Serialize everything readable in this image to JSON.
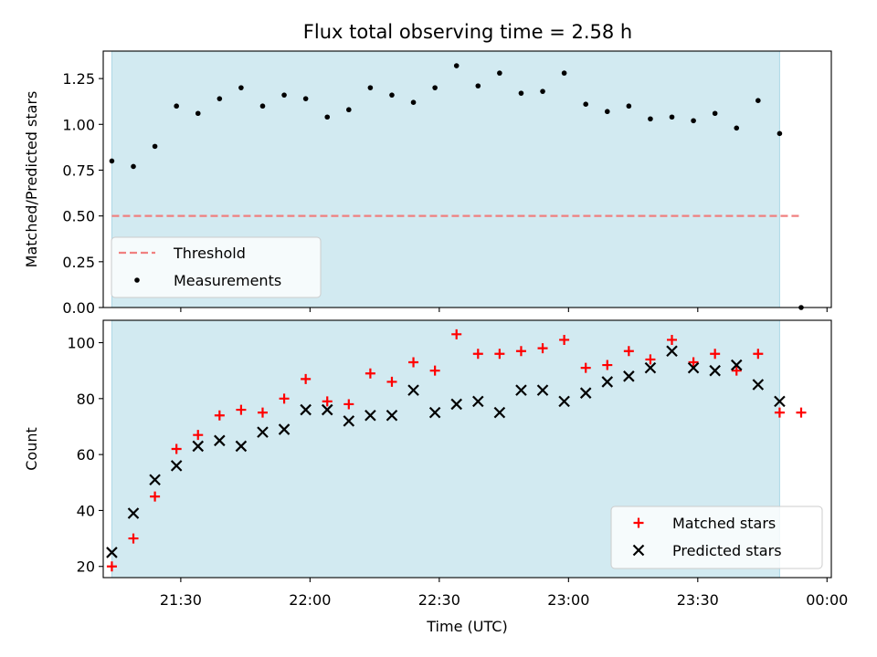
{
  "title": "Flux total observing time = 2.58 h",
  "colors": {
    "shade": "#add8e6",
    "threshold": "#f08080",
    "measurement": "#000000",
    "matched": "#ff0000",
    "predicted": "#000000"
  },
  "chart_data": [
    {
      "type": "scatter",
      "ylabel": "Matched/Predicted stars",
      "ylim": [
        0,
        1.4
      ],
      "yticks": [
        0.0,
        0.25,
        0.5,
        0.75,
        1.0,
        1.25
      ],
      "ytick_labels": [
        "0.00",
        "0.25",
        "0.50",
        "0.75",
        "1.00",
        "1.25"
      ],
      "xlim": [
        "21:12",
        "00:01"
      ],
      "shaded_interval": [
        "21:14",
        "23:49"
      ],
      "grid": false,
      "legend_position": "lower-left",
      "threshold": {
        "name": "Threshold",
        "value": 0.5,
        "x_range": [
          "21:14",
          "23:54"
        ],
        "style": "dashed"
      },
      "series": [
        {
          "name": "Measurements",
          "marker": "dot",
          "points": [
            [
              "21:14",
              0.8
            ],
            [
              "21:19",
              0.77
            ],
            [
              "21:24",
              0.88
            ],
            [
              "21:29",
              1.1
            ],
            [
              "21:34",
              1.06
            ],
            [
              "21:39",
              1.14
            ],
            [
              "21:44",
              1.2
            ],
            [
              "21:49",
              1.1
            ],
            [
              "21:54",
              1.16
            ],
            [
              "21:59",
              1.14
            ],
            [
              "22:04",
              1.04
            ],
            [
              "22:09",
              1.08
            ],
            [
              "22:14",
              1.2
            ],
            [
              "22:19",
              1.16
            ],
            [
              "22:24",
              1.12
            ],
            [
              "22:29",
              1.2
            ],
            [
              "22:34",
              1.32
            ],
            [
              "22:39",
              1.21
            ],
            [
              "22:44",
              1.28
            ],
            [
              "22:49",
              1.17
            ],
            [
              "22:54",
              1.18
            ],
            [
              "22:59",
              1.28
            ],
            [
              "23:04",
              1.11
            ],
            [
              "23:09",
              1.07
            ],
            [
              "23:14",
              1.1
            ],
            [
              "23:19",
              1.03
            ],
            [
              "23:24",
              1.04
            ],
            [
              "23:29",
              1.02
            ],
            [
              "23:34",
              1.06
            ],
            [
              "23:39",
              0.98
            ],
            [
              "23:44",
              1.13
            ],
            [
              "23:49",
              0.95
            ],
            [
              "23:54",
              0.0
            ]
          ]
        }
      ]
    },
    {
      "type": "scatter",
      "ylabel": "Count",
      "xlabel": "Time (UTC)",
      "ylim": [
        16,
        108
      ],
      "yticks": [
        20,
        40,
        60,
        80,
        100
      ],
      "ytick_labels": [
        "20",
        "40",
        "60",
        "80",
        "100"
      ],
      "xlim": [
        "21:12",
        "00:01"
      ],
      "xticks": [
        "21:30",
        "22:00",
        "22:30",
        "23:00",
        "23:30",
        "00:00"
      ],
      "shaded_interval": [
        "21:14",
        "23:49"
      ],
      "grid": false,
      "legend_position": "lower-right",
      "series": [
        {
          "name": "Matched stars",
          "marker": "plus",
          "points": [
            [
              "21:14",
              20
            ],
            [
              "21:19",
              30
            ],
            [
              "21:24",
              45
            ],
            [
              "21:29",
              62
            ],
            [
              "21:34",
              67
            ],
            [
              "21:39",
              74
            ],
            [
              "21:44",
              76
            ],
            [
              "21:49",
              75
            ],
            [
              "21:54",
              80
            ],
            [
              "21:59",
              87
            ],
            [
              "22:04",
              79
            ],
            [
              "22:09",
              78
            ],
            [
              "22:14",
              89
            ],
            [
              "22:19",
              86
            ],
            [
              "22:24",
              93
            ],
            [
              "22:29",
              90
            ],
            [
              "22:34",
              103
            ],
            [
              "22:39",
              96
            ],
            [
              "22:44",
              96
            ],
            [
              "22:49",
              97
            ],
            [
              "22:54",
              98
            ],
            [
              "22:59",
              101
            ],
            [
              "23:04",
              91
            ],
            [
              "23:09",
              92
            ],
            [
              "23:14",
              97
            ],
            [
              "23:19",
              94
            ],
            [
              "23:24",
              101
            ],
            [
              "23:29",
              93
            ],
            [
              "23:34",
              96
            ],
            [
              "23:39",
              90
            ],
            [
              "23:44",
              96
            ],
            [
              "23:49",
              75
            ],
            [
              "23:54",
              75
            ]
          ]
        },
        {
          "name": "Predicted stars",
          "marker": "x",
          "points": [
            [
              "21:14",
              25
            ],
            [
              "21:19",
              39
            ],
            [
              "21:24",
              51
            ],
            [
              "21:29",
              56
            ],
            [
              "21:34",
              63
            ],
            [
              "21:39",
              65
            ],
            [
              "21:44",
              63
            ],
            [
              "21:49",
              68
            ],
            [
              "21:54",
              69
            ],
            [
              "21:59",
              76
            ],
            [
              "22:04",
              76
            ],
            [
              "22:09",
              72
            ],
            [
              "22:14",
              74
            ],
            [
              "22:19",
              74
            ],
            [
              "22:24",
              83
            ],
            [
              "22:29",
              75
            ],
            [
              "22:34",
              78
            ],
            [
              "22:39",
              79
            ],
            [
              "22:44",
              75
            ],
            [
              "22:49",
              83
            ],
            [
              "22:54",
              83
            ],
            [
              "22:59",
              79
            ],
            [
              "23:04",
              82
            ],
            [
              "23:09",
              86
            ],
            [
              "23:14",
              88
            ],
            [
              "23:19",
              91
            ],
            [
              "23:24",
              97
            ],
            [
              "23:29",
              91
            ],
            [
              "23:34",
              90
            ],
            [
              "23:39",
              92
            ],
            [
              "23:44",
              85
            ],
            [
              "23:49",
              79
            ]
          ]
        }
      ]
    }
  ]
}
